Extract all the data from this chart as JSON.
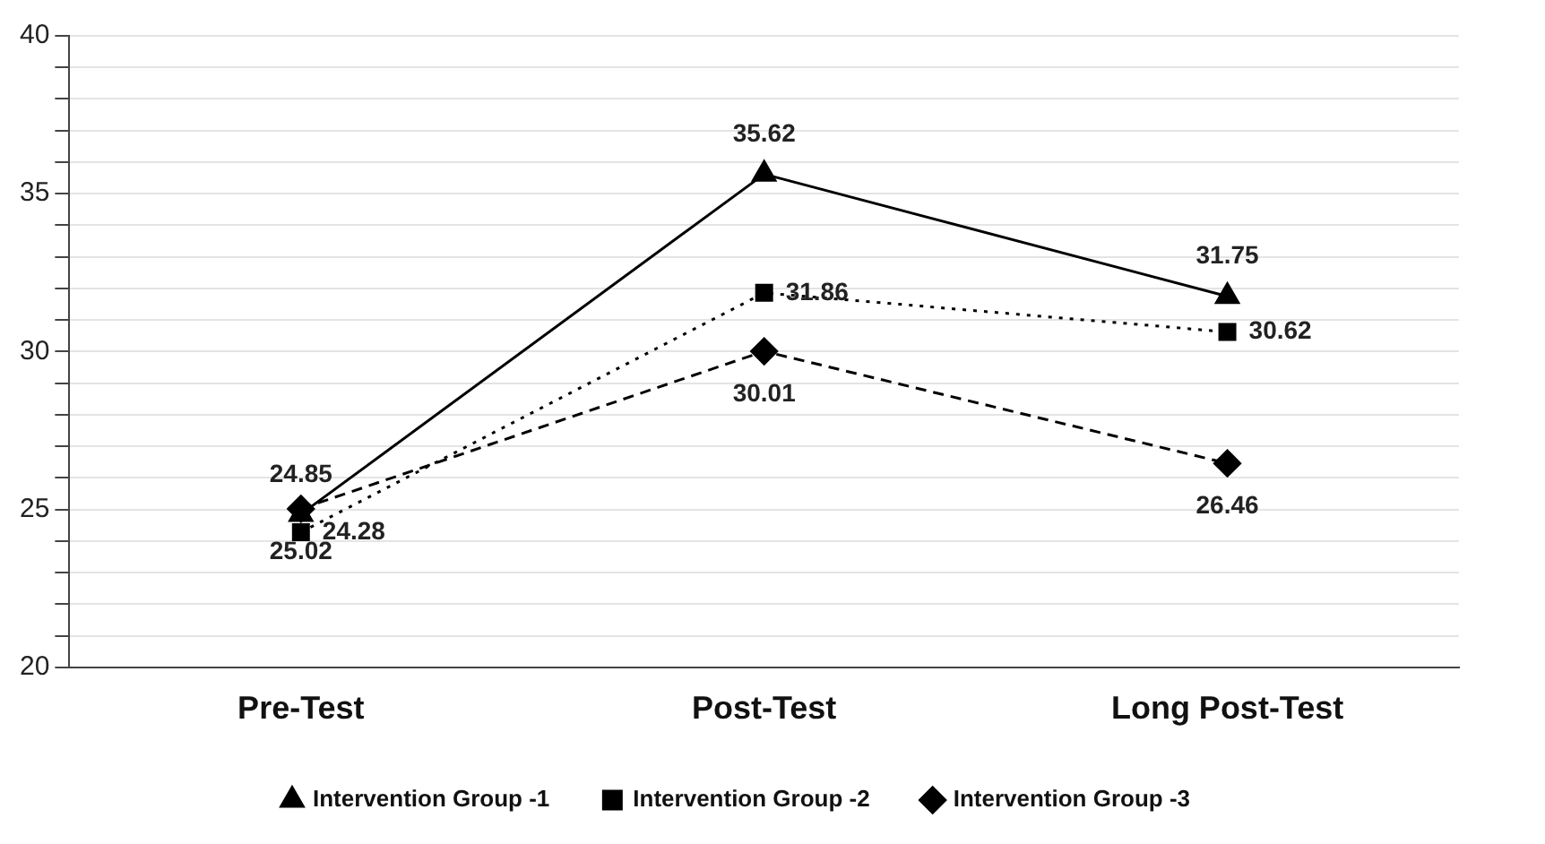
{
  "chart_data": {
    "type": "line",
    "categories": [
      "Pre-Test",
      "Post-Test",
      "Long Post-Test"
    ],
    "series": [
      {
        "name": "Intervention Group -1",
        "color": "#000000",
        "values": [
          24.85,
          35.62,
          31.75
        ],
        "marker": "triangle",
        "line_style": "solid"
      },
      {
        "name": "Intervention Group -2",
        "color": "#000000",
        "values": [
          24.28,
          31.86,
          30.62
        ],
        "marker": "square",
        "line_style": "dotted"
      },
      {
        "name": "Intervention Group -3",
        "color": "#000000",
        "values": [
          25.02,
          30.01,
          26.46
        ],
        "marker": "diamond",
        "line_style": "dashed"
      }
    ],
    "ylim": [
      20,
      40
    ],
    "yticks": [
      20,
      {
        "value": 21,
        "label": null
      },
      {
        "value": 22,
        "label": null
      },
      {
        "value": 23,
        "label": null
      },
      {
        "value": 24,
        "label": null
      },
      25,
      {
        "value": 26,
        "label": null
      },
      {
        "value": 27,
        "label": null
      },
      {
        "value": 28,
        "label": null
      },
      {
        "value": 29,
        "label": null
      },
      30,
      {
        "value": 31,
        "label": null
      },
      {
        "value": 32,
        "label": null
      },
      {
        "value": 33,
        "label": null
      },
      {
        "value": 34,
        "label": null
      },
      35,
      {
        "value": 36,
        "label": null
      },
      {
        "value": 37,
        "label": null
      },
      {
        "value": 38,
        "label": null
      },
      {
        "value": 39,
        "label": null
      },
      40
    ],
    "grid": "y",
    "legend": "bottom",
    "data_labels": true
  }
}
